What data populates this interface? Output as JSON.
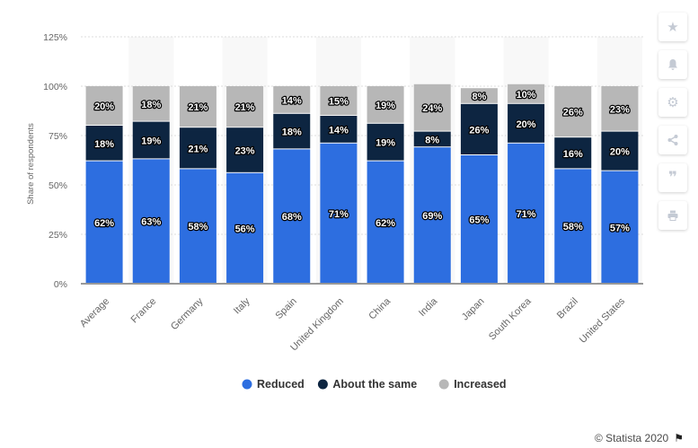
{
  "chart_data": {
    "type": "bar",
    "stacked": true,
    "categories": [
      "Average",
      "France",
      "Germany",
      "Italy",
      "Spain",
      "United Kingdom",
      "China",
      "India",
      "Japan",
      "South Korea",
      "Brazil",
      "United States"
    ],
    "series": [
      {
        "name": "Reduced",
        "color": "#2d6ee0",
        "values": [
          62,
          63,
          58,
          56,
          68,
          71,
          62,
          69,
          65,
          71,
          58,
          57
        ]
      },
      {
        "name": "About the same",
        "color": "#0d2541",
        "values": [
          18,
          19,
          21,
          23,
          18,
          14,
          19,
          8,
          26,
          20,
          16,
          20
        ]
      },
      {
        "name": "Increased",
        "color": "#b7b7b7",
        "values": [
          20,
          18,
          21,
          21,
          14,
          15,
          19,
          24,
          8,
          10,
          26,
          23
        ]
      }
    ],
    "ylabel": "Share of respondents",
    "xlabel": "",
    "ylim": [
      0,
      125
    ],
    "yticks": [
      "0%",
      "25%",
      "50%",
      "75%",
      "100%",
      "125%"
    ],
    "value_suffix": "%",
    "grid": true,
    "legend_position": "bottom-center"
  },
  "credit": "© Statista 2020",
  "toolbar": {
    "icons": [
      "star-icon",
      "bell-icon",
      "gear-icon",
      "share-icon",
      "quote-icon",
      "print-icon"
    ]
  }
}
